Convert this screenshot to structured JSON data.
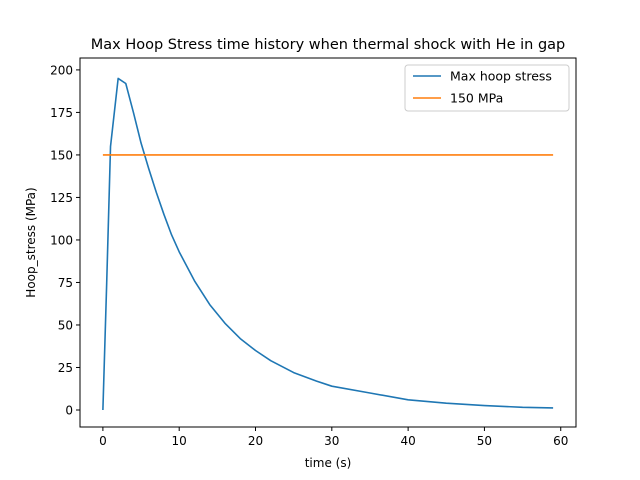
{
  "chart_data": {
    "type": "line",
    "title": "Max Hoop Stress time history when thermal shock with He in gap",
    "xlabel": "time (s)",
    "ylabel": "Hoop_stress (MPa)",
    "xlim": [
      -3,
      62
    ],
    "ylim": [
      -10,
      207
    ],
    "xticks": [
      0,
      10,
      20,
      30,
      40,
      50,
      60
    ],
    "yticks": [
      0,
      25,
      50,
      75,
      100,
      125,
      150,
      175,
      200
    ],
    "grid": false,
    "legend_position": "top-right",
    "series": [
      {
        "name": "Max hoop stress",
        "color": "#1f77b4",
        "x": [
          0,
          0.5,
          1,
          2,
          3,
          4,
          5,
          6,
          7,
          8,
          9,
          10,
          12,
          14,
          16,
          18,
          20,
          22,
          25,
          28,
          30,
          35,
          40,
          45,
          50,
          55,
          59
        ],
        "y": [
          0,
          75,
          155,
          195,
          192,
          175,
          157,
          142,
          128,
          115,
          103,
          93,
          76,
          62,
          51,
          42,
          35,
          29,
          22,
          17,
          14,
          10,
          6,
          4,
          2.6,
          1.6,
          1.2
        ]
      },
      {
        "name": "150 MPa",
        "color": "#ff7f0e",
        "x": [
          0,
          59
        ],
        "y": [
          150,
          150
        ]
      }
    ]
  }
}
